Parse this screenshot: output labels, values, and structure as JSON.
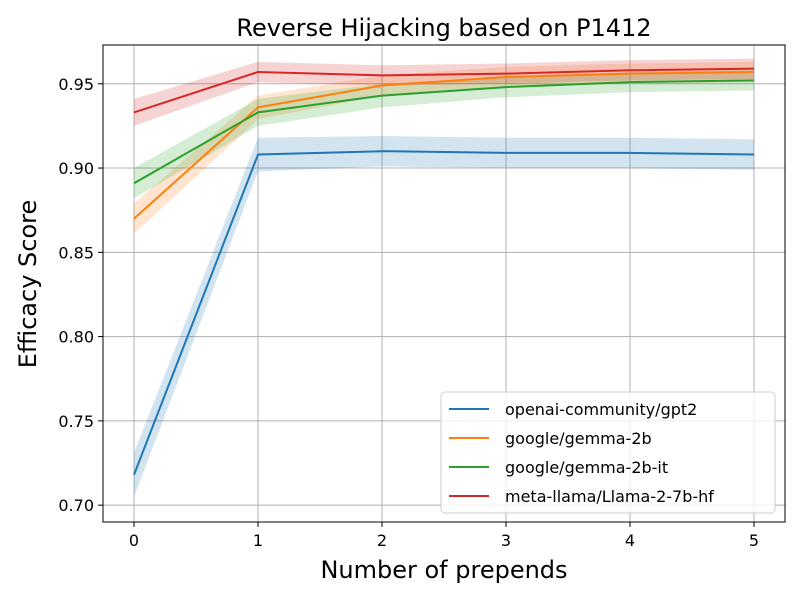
{
  "chart_data": {
    "type": "line",
    "title": "Reverse Hijacking based on P1412",
    "xlabel": "Number of prepends",
    "ylabel": "Efficacy Score",
    "x": [
      0,
      1,
      2,
      3,
      4,
      5
    ],
    "xlim": [
      -0.25,
      5.25
    ],
    "ylim": [
      0.69,
      0.973
    ],
    "xticks": [
      "0",
      "1",
      "2",
      "3",
      "4",
      "5"
    ],
    "yticks": [
      "0.70",
      "0.75",
      "0.80",
      "0.85",
      "0.90",
      "0.95"
    ],
    "grid": true,
    "legend_position": "lower-right",
    "series": [
      {
        "name": "openai-community/gpt2",
        "color": "#1f77b4",
        "values": [
          0.718,
          0.908,
          0.91,
          0.909,
          0.909,
          0.908
        ],
        "ci": [
          0.013,
          0.01,
          0.009,
          0.009,
          0.009,
          0.009
        ]
      },
      {
        "name": "google/gemma-2b",
        "color": "#ff7f0e",
        "values": [
          0.87,
          0.936,
          0.949,
          0.954,
          0.956,
          0.957
        ],
        "ci": [
          0.009,
          0.007,
          0.006,
          0.006,
          0.006,
          0.006
        ]
      },
      {
        "name": "google/gemma-2b-it",
        "color": "#2ca02c",
        "values": [
          0.891,
          0.933,
          0.943,
          0.948,
          0.951,
          0.952
        ],
        "ci": [
          0.009,
          0.008,
          0.007,
          0.006,
          0.006,
          0.006
        ]
      },
      {
        "name": "meta-llama/Llama-2-7b-hf",
        "color": "#d62728",
        "values": [
          0.933,
          0.957,
          0.955,
          0.956,
          0.958,
          0.959
        ],
        "ci": [
          0.008,
          0.006,
          0.006,
          0.006,
          0.006,
          0.006
        ]
      }
    ]
  }
}
